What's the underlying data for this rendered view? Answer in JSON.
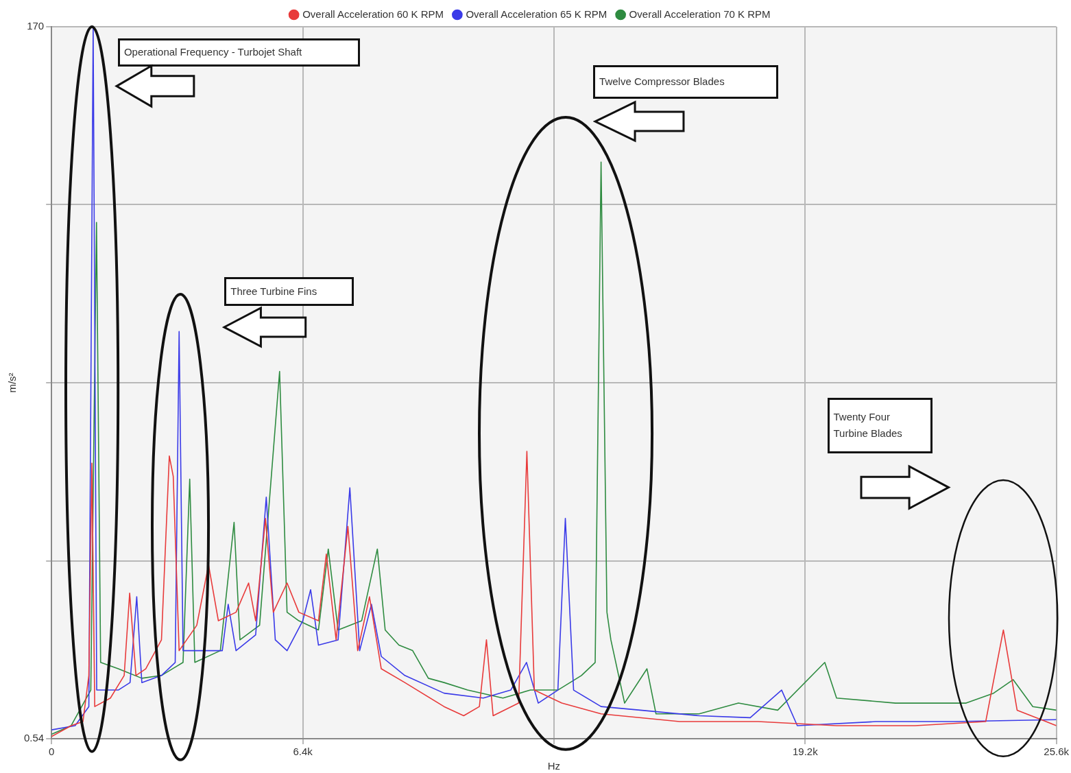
{
  "chart_data": {
    "type": "line",
    "xlabel": "Hz",
    "ylabel": "m/s²",
    "log": "y",
    "grid": true,
    "legend": "top",
    "xlim": [
      0,
      25600
    ],
    "xticks": [
      0,
      {
        "value": 6400,
        "label": "6.4k"
      },
      {
        "value": 12800,
        "label": null
      },
      {
        "value": 19200,
        "label": "19.2k"
      },
      {
        "value": 25600,
        "label": "25.6k"
      }
    ],
    "ylim": [
      0.54,
      170
    ],
    "yticks": [
      0.54,
      {
        "value": 2.27,
        "label": null
      },
      {
        "value": 9.58,
        "label": null
      },
      {
        "value": 40.4,
        "label": null
      },
      170
    ],
    "annotations": [
      "Operational Frequency - Turbojet Shaft",
      "Three Turbine Fins",
      "Twelve Compressor Blades",
      "Twenty Four Turbine Blades"
    ],
    "series": [
      {
        "name": "Overall Acceleration 60 K RPM",
        "color": "#e83a3a",
        "x": [
          0,
          500,
          800,
          950,
          1027,
          1100,
          1500,
          1850,
          1990,
          2150,
          2400,
          2800,
          3000,
          3100,
          3250,
          3700,
          4000,
          4250,
          4700,
          5020,
          5200,
          5450,
          5650,
          6000,
          6300,
          6800,
          7000,
          7250,
          7550,
          7800,
          8100,
          8400,
          9000,
          10000,
          10500,
          10900,
          11080,
          11250,
          11900,
          12110,
          12300,
          13000,
          14000,
          16000,
          18000,
          20000,
          22000,
          23800,
          24250,
          24600,
          25600
        ],
        "values": [
          0.55,
          0.6,
          0.62,
          0.9,
          5.0,
          0.7,
          0.75,
          0.9,
          1.75,
          0.9,
          0.95,
          1.2,
          5.3,
          4.5,
          1.1,
          1.35,
          2.2,
          1.4,
          1.5,
          1.9,
          1.4,
          3.2,
          1.5,
          1.9,
          1.5,
          1.4,
          2.4,
          1.2,
          3.0,
          1.1,
          1.7,
          0.95,
          0.85,
          0.7,
          0.65,
          0.7,
          1.2,
          0.65,
          0.72,
          5.5,
          0.8,
          0.72,
          0.66,
          0.62,
          0.62,
          0.6,
          0.6,
          0.62,
          1.3,
          0.68,
          0.6
        ]
      },
      {
        "name": "Overall Acceleration 65 K RPM",
        "color": "#3a3ae8",
        "x": [
          0,
          600,
          950,
          1060,
          1150,
          1700,
          2000,
          2170,
          2300,
          2800,
          3150,
          3250,
          3350,
          3900,
          4350,
          4500,
          4700,
          5200,
          5470,
          5700,
          6000,
          6400,
          6600,
          6800,
          7300,
          7600,
          7850,
          8150,
          8400,
          9000,
          10000,
          11000,
          11700,
          12100,
          12400,
          12900,
          13090,
          13300,
          14000,
          15000,
          16500,
          17800,
          18600,
          19000,
          21000,
          23000,
          25600
        ],
        "values": [
          0.58,
          0.6,
          0.7,
          170,
          0.8,
          0.8,
          0.85,
          1.7,
          0.85,
          0.9,
          1.0,
          14.5,
          1.1,
          1.1,
          1.1,
          1.6,
          1.1,
          1.25,
          3.8,
          1.2,
          1.1,
          1.4,
          1.8,
          1.15,
          1.2,
          4.1,
          1.1,
          1.6,
          1.05,
          0.9,
          0.78,
          0.75,
          0.8,
          1.0,
          0.72,
          0.8,
          3.2,
          0.8,
          0.7,
          0.68,
          0.65,
          0.64,
          0.8,
          0.6,
          0.62,
          0.62,
          0.63
        ]
      },
      {
        "name": "Overall Acceleration 70 K RPM",
        "color": "#2e8b40",
        "x": [
          0,
          500,
          1000,
          1145,
          1250,
          1700,
          2300,
          2800,
          3350,
          3520,
          3650,
          4300,
          4650,
          4800,
          5300,
          5810,
          6000,
          6300,
          6800,
          7050,
          7300,
          7900,
          8300,
          8500,
          8850,
          9200,
          9600,
          10000,
          10600,
          11500,
          12200,
          12900,
          13500,
          13850,
          14000,
          14150,
          14250,
          14600,
          15170,
          15400,
          16500,
          17500,
          18500,
          19700,
          20000,
          21500,
          22700,
          23300,
          24000,
          24500,
          25000,
          25600
        ],
        "values": [
          0.56,
          0.6,
          0.8,
          35,
          1.0,
          0.95,
          0.88,
          0.9,
          1.0,
          4.4,
          1.0,
          1.1,
          3.1,
          1.2,
          1.35,
          10.5,
          1.5,
          1.4,
          1.3,
          2.5,
          1.3,
          1.4,
          2.5,
          1.3,
          1.15,
          1.1,
          0.88,
          0.85,
          0.8,
          0.75,
          0.8,
          0.8,
          0.9,
          1.0,
          57,
          1.5,
          1.2,
          0.72,
          0.95,
          0.66,
          0.66,
          0.72,
          0.68,
          1.0,
          0.75,
          0.72,
          0.72,
          0.72,
          0.78,
          0.87,
          0.7,
          0.68
        ]
      }
    ]
  }
}
